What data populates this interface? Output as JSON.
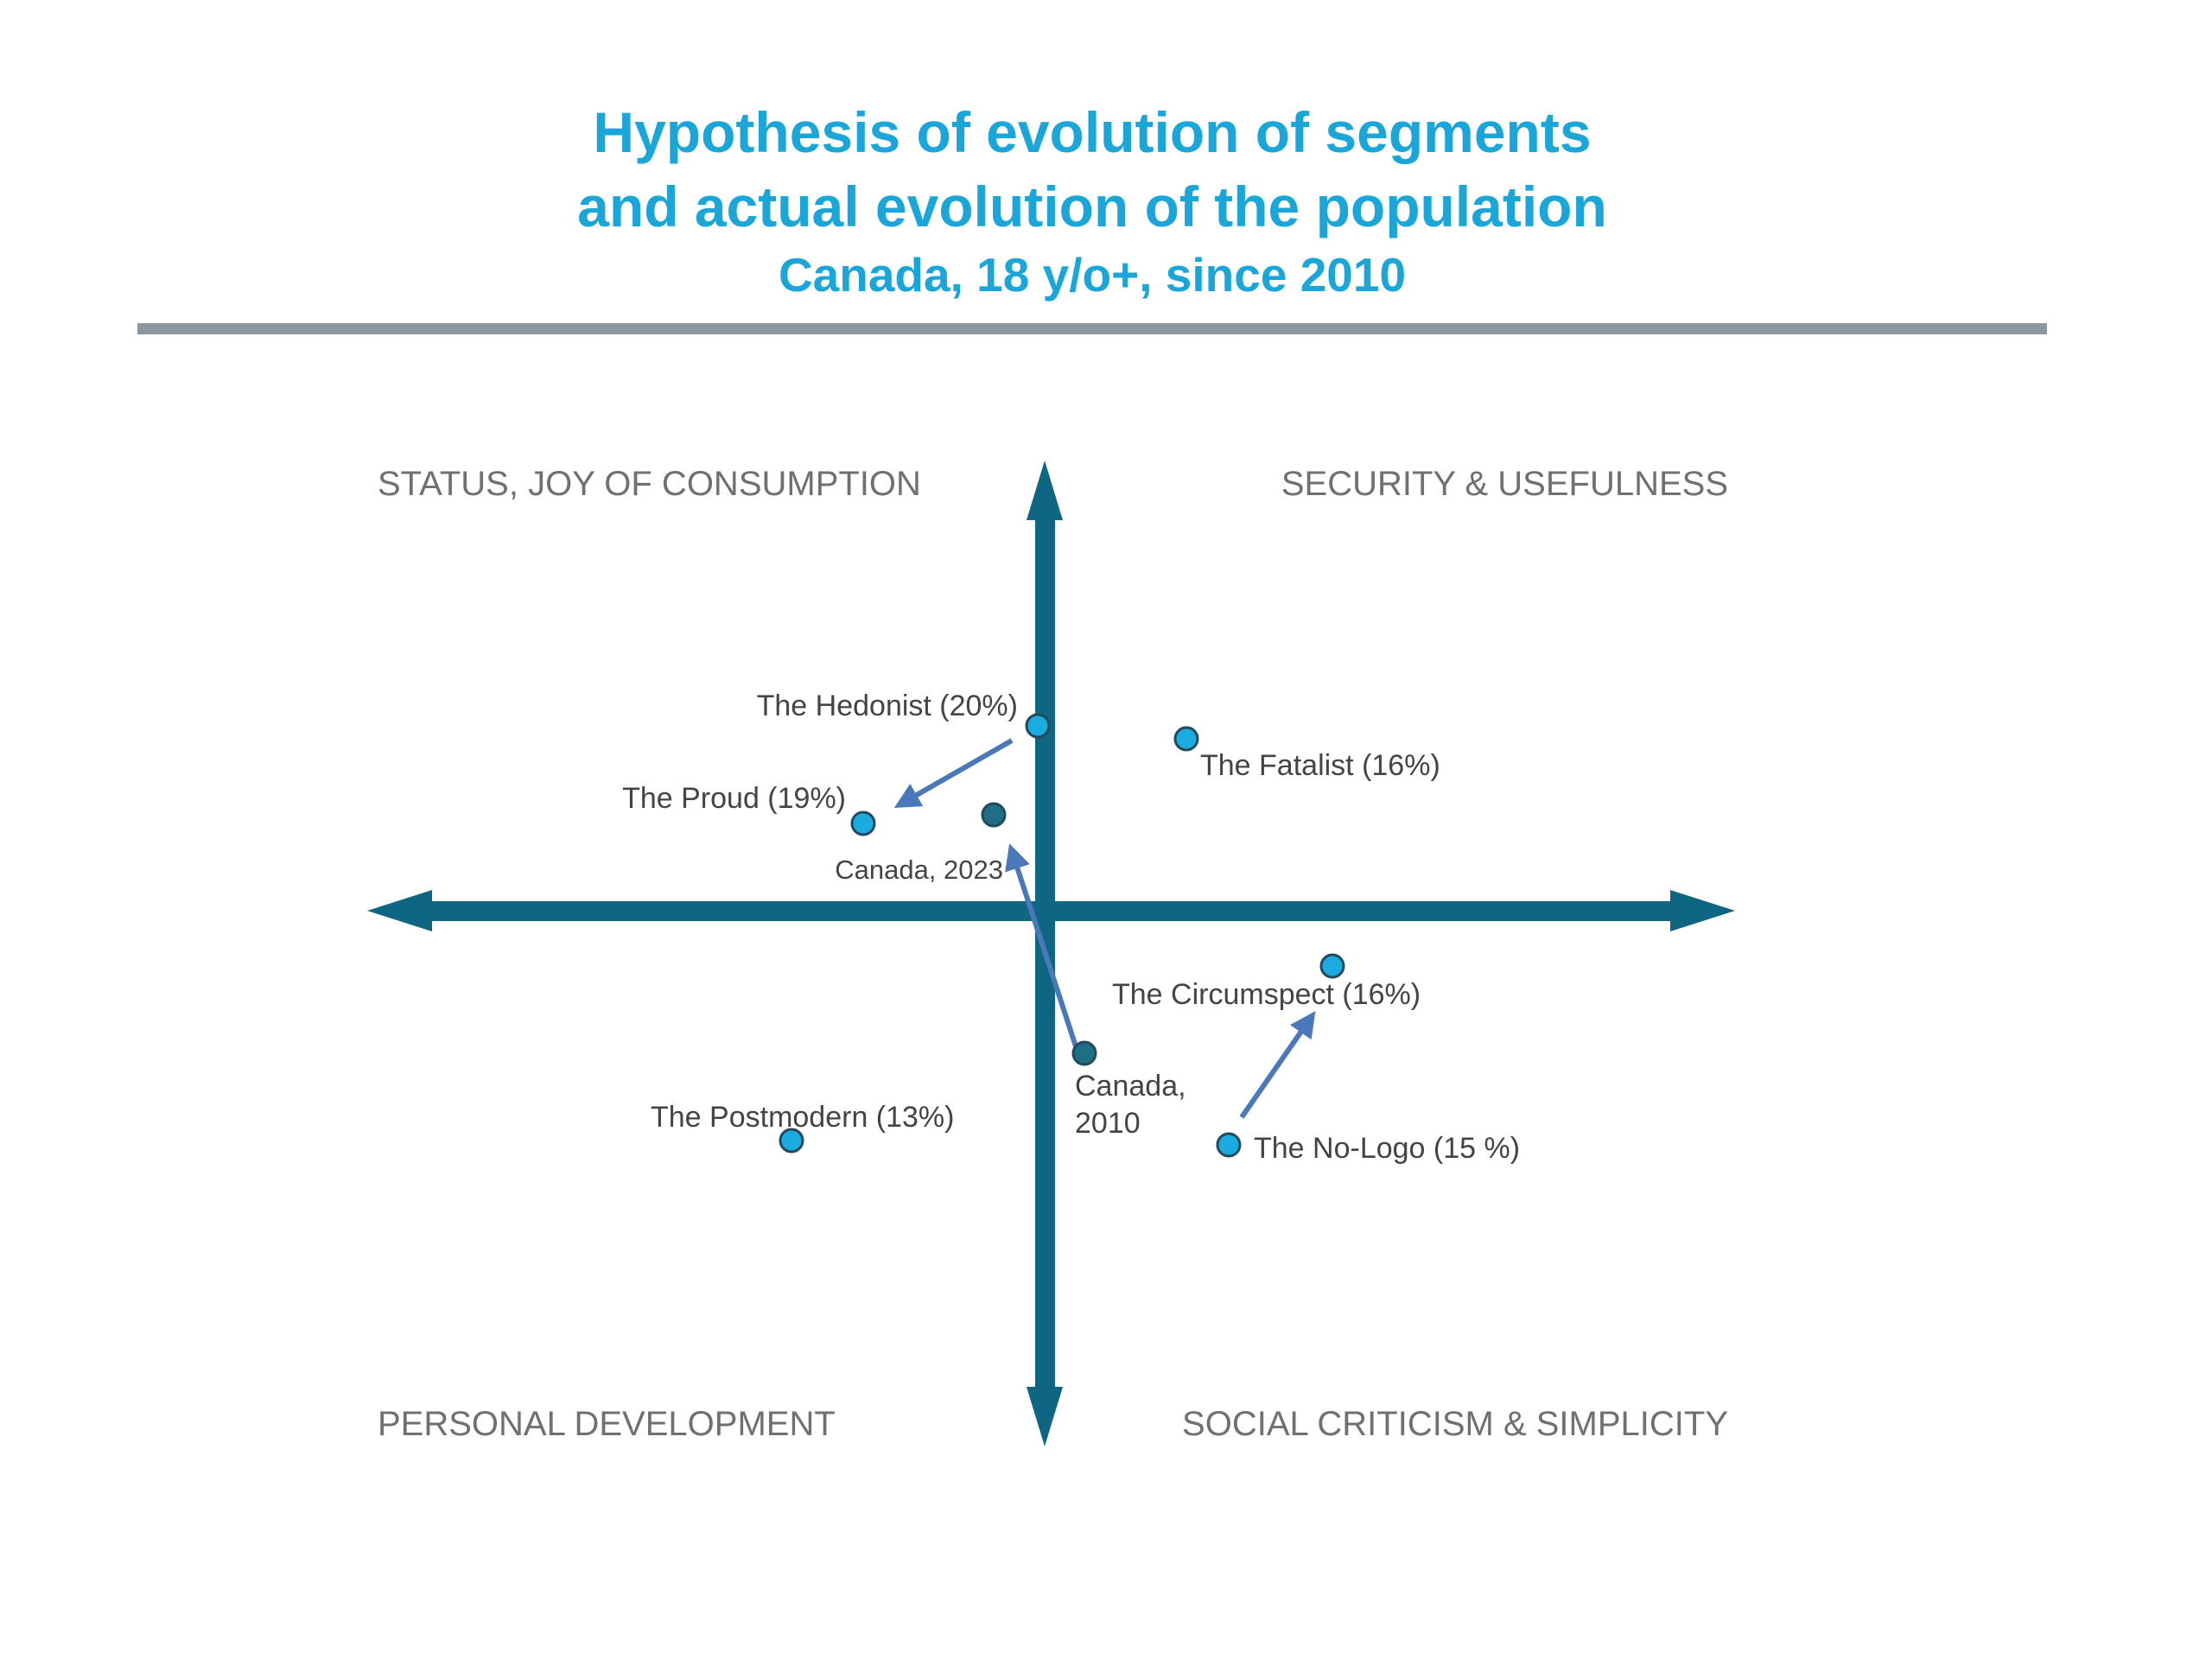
{
  "header": {
    "title_lines": [
      "Hypothesis of evolution of segments",
      "and actual evolution of the population"
    ],
    "subtitle": "Canada, 18 y/o+, since 2010"
  },
  "quadrants": {
    "top_left": "STATUS, JOY OF CONSUMPTION",
    "top_right": "SECURITY & USEFULNESS",
    "bottom_left": "PERSONAL DEVELOPMENT",
    "bottom_right": "SOCIAL CRITICISM & SIMPLICITY"
  },
  "nodes": [
    {
      "label": [
        "The Hedonist (20%)"
      ]
    },
    {
      "label": [
        "The Fatalist (16%)"
      ]
    },
    {
      "label": [
        "The Proud (19%)"
      ]
    },
    {
      "label": [
        "Canada, 2023"
      ]
    },
    {
      "label": [
        "The Circumspect (16%)"
      ]
    },
    {
      "label": [
        "Canada,",
        "2010"
      ]
    },
    {
      "label": [
        "The Postmodern (13%)"
      ]
    },
    {
      "label": [
        "The No-Logo (15 %)"
      ]
    }
  ]
}
